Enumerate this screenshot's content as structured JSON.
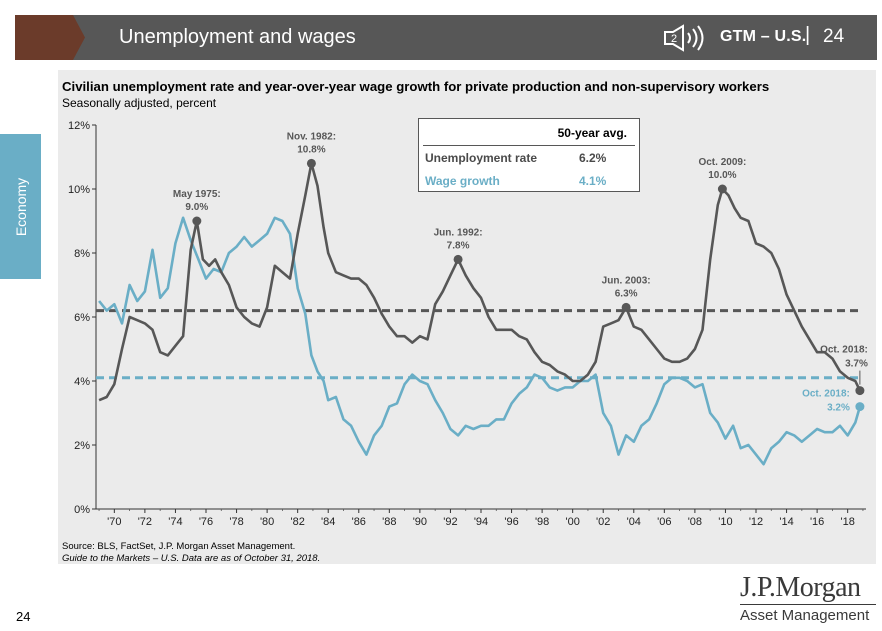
{
  "header": {
    "title": "Unemployment and wages",
    "badge": "GTM – U.S.",
    "separator": "|",
    "page_number": "24",
    "icon": "speaker-icon",
    "icon_number": "2"
  },
  "side_tab": {
    "label": "Economy"
  },
  "footer": {
    "source": "Source: BLS, FactSet, J.P. Morgan Asset Management.",
    "guide": "Guide to the Markets – U.S. Data are as of October 31, 2018.",
    "page_number": "24"
  },
  "logo": {
    "main": "J.P.Morgan",
    "sub": "Asset Management"
  },
  "legend": {
    "header": "50-year avg.",
    "rows": [
      {
        "label": "Unemployment rate",
        "value": "6.2%"
      },
      {
        "label": "Wage growth",
        "value": "4.1%"
      }
    ]
  },
  "colors": {
    "unemployment": "#575757",
    "wages": "#6aaec6",
    "header_accent": "#6b3b2a"
  },
  "chart_data": {
    "type": "line",
    "title": "Civilian unemployment rate and year-over-year wage growth for private production and non-supervisory workers",
    "subtitle": "Seasonally adjusted, percent",
    "ylim": [
      0,
      12
    ],
    "xlim": [
      1968.8,
      2019.2
    ],
    "y_ticks": [
      0,
      2,
      4,
      6,
      8,
      10,
      12
    ],
    "y_tick_labels": [
      "0%",
      "2%",
      "4%",
      "6%",
      "8%",
      "10%",
      "12%"
    ],
    "x_ticks": [
      1970,
      1972,
      1974,
      1976,
      1978,
      1980,
      1982,
      1984,
      1986,
      1988,
      1990,
      1992,
      1994,
      1996,
      1998,
      2000,
      2002,
      2004,
      2006,
      2008,
      2010,
      2012,
      2014,
      2016,
      2018
    ],
    "x_tick_labels": [
      "'70",
      "'72",
      "'74",
      "'76",
      "'78",
      "'80",
      "'82",
      "'84",
      "'86",
      "'88",
      "'90",
      "'92",
      "'94",
      "'96",
      "'98",
      "'00",
      "'02",
      "'04",
      "'06",
      "'08",
      "'10",
      "'12",
      "'14",
      "'16",
      "'18"
    ],
    "averages": [
      {
        "name": "Unemployment rate 50-year avg.",
        "value": 6.2
      },
      {
        "name": "Wage growth 50-year avg.",
        "value": 4.1
      }
    ],
    "series": [
      {
        "name": "Unemployment rate",
        "x": [
          1969.0,
          1969.5,
          1970.0,
          1970.5,
          1971.0,
          1971.5,
          1972.0,
          1972.5,
          1973.0,
          1973.5,
          1974.0,
          1974.5,
          1975.0,
          1975.4,
          1975.8,
          1976.2,
          1976.6,
          1977.0,
          1977.5,
          1978.0,
          1978.5,
          1979.0,
          1979.5,
          1980.0,
          1980.5,
          1981.0,
          1981.5,
          1982.0,
          1982.5,
          1982.9,
          1983.3,
          1983.7,
          1984.0,
          1984.5,
          1985.0,
          1985.5,
          1986.0,
          1986.5,
          1987.0,
          1987.5,
          1988.0,
          1988.5,
          1989.0,
          1989.5,
          1990.0,
          1990.5,
          1991.0,
          1991.5,
          1992.0,
          1992.5,
          1993.0,
          1993.5,
          1994.0,
          1994.5,
          1995.0,
          1995.5,
          1996.0,
          1996.5,
          1997.0,
          1997.5,
          1998.0,
          1998.5,
          1999.0,
          1999.5,
          2000.0,
          2000.5,
          2001.0,
          2001.5,
          2002.0,
          2002.5,
          2003.0,
          2003.5,
          2004.0,
          2004.5,
          2005.0,
          2005.5,
          2006.0,
          2006.5,
          2007.0,
          2007.5,
          2008.0,
          2008.5,
          2009.0,
          2009.5,
          2009.8,
          2010.2,
          2010.6,
          2011.0,
          2011.5,
          2012.0,
          2012.5,
          2013.0,
          2013.5,
          2014.0,
          2014.5,
          2015.0,
          2015.5,
          2016.0,
          2016.5,
          2017.0,
          2017.5,
          2018.0,
          2018.5,
          2018.8
        ],
        "values": [
          3.4,
          3.5,
          3.9,
          5.0,
          6.0,
          5.9,
          5.8,
          5.6,
          4.9,
          4.8,
          5.1,
          5.4,
          8.1,
          9.0,
          7.8,
          7.6,
          7.8,
          7.4,
          7.0,
          6.3,
          6.0,
          5.8,
          5.7,
          6.3,
          7.6,
          7.4,
          7.2,
          8.6,
          9.8,
          10.8,
          10.1,
          8.8,
          8.0,
          7.4,
          7.3,
          7.2,
          7.2,
          7.0,
          6.6,
          6.1,
          5.7,
          5.4,
          5.4,
          5.2,
          5.4,
          5.3,
          6.4,
          6.8,
          7.3,
          7.8,
          7.3,
          6.9,
          6.6,
          6.0,
          5.6,
          5.6,
          5.6,
          5.4,
          5.3,
          4.9,
          4.6,
          4.5,
          4.3,
          4.2,
          4.0,
          4.0,
          4.2,
          4.6,
          5.7,
          5.8,
          5.9,
          6.3,
          5.7,
          5.6,
          5.3,
          5.0,
          4.7,
          4.6,
          4.6,
          4.7,
          5.0,
          5.6,
          7.8,
          9.5,
          10.0,
          9.8,
          9.4,
          9.1,
          9.0,
          8.3,
          8.2,
          8.0,
          7.5,
          6.7,
          6.2,
          5.7,
          5.3,
          4.9,
          4.9,
          4.7,
          4.3,
          4.1,
          4.0,
          3.7
        ]
      },
      {
        "name": "Wage growth",
        "x": [
          1969.0,
          1969.5,
          1970.0,
          1970.5,
          1971.0,
          1971.5,
          1972.0,
          1972.5,
          1973.0,
          1973.5,
          1974.0,
          1974.5,
          1975.0,
          1975.5,
          1976.0,
          1976.5,
          1977.0,
          1977.5,
          1978.0,
          1978.5,
          1979.0,
          1979.5,
          1980.0,
          1980.5,
          1981.0,
          1981.5,
          1982.0,
          1982.5,
          1982.9,
          1983.3,
          1983.7,
          1984.0,
          1984.5,
          1985.0,
          1985.5,
          1986.0,
          1986.5,
          1987.0,
          1987.5,
          1988.0,
          1988.5,
          1989.0,
          1989.5,
          1990.0,
          1990.5,
          1991.0,
          1991.5,
          1992.0,
          1992.5,
          1993.0,
          1993.5,
          1994.0,
          1994.5,
          1995.0,
          1995.5,
          1996.0,
          1996.5,
          1997.0,
          1997.5,
          1998.0,
          1998.5,
          1999.0,
          1999.5,
          2000.0,
          2000.5,
          2001.0,
          2001.5,
          2002.0,
          2002.5,
          2003.0,
          2003.5,
          2004.0,
          2004.5,
          2005.0,
          2005.5,
          2006.0,
          2006.5,
          2007.0,
          2007.5,
          2008.0,
          2008.5,
          2009.0,
          2009.5,
          2010.0,
          2010.5,
          2011.0,
          2011.5,
          2012.0,
          2012.5,
          2013.0,
          2013.5,
          2014.0,
          2014.5,
          2015.0,
          2015.5,
          2016.0,
          2016.5,
          2017.0,
          2017.5,
          2018.0,
          2018.5,
          2018.8
        ],
        "values": [
          6.5,
          6.2,
          6.4,
          5.8,
          7.0,
          6.5,
          6.8,
          8.1,
          6.6,
          6.9,
          8.3,
          9.1,
          8.4,
          7.8,
          7.2,
          7.5,
          7.4,
          8.0,
          8.2,
          8.5,
          8.2,
          8.4,
          8.6,
          9.1,
          9.0,
          8.6,
          6.9,
          6.1,
          4.8,
          4.3,
          4.0,
          3.4,
          3.5,
          2.8,
          2.6,
          2.1,
          1.7,
          2.3,
          2.6,
          3.2,
          3.3,
          3.9,
          4.2,
          4.0,
          3.9,
          3.4,
          3.0,
          2.5,
          2.3,
          2.6,
          2.5,
          2.6,
          2.6,
          2.8,
          2.8,
          3.3,
          3.6,
          3.8,
          4.2,
          4.1,
          3.8,
          3.7,
          3.8,
          3.8,
          4.0,
          4.0,
          4.2,
          3.0,
          2.6,
          1.7,
          2.3,
          2.1,
          2.6,
          2.8,
          3.3,
          3.9,
          4.1,
          4.1,
          4.0,
          3.8,
          3.9,
          3.0,
          2.7,
          2.2,
          2.6,
          1.9,
          2.0,
          1.7,
          1.4,
          1.9,
          2.1,
          2.4,
          2.3,
          2.1,
          2.3,
          2.5,
          2.4,
          2.4,
          2.6,
          2.3,
          2.7,
          3.2
        ]
      }
    ],
    "annotations": [
      {
        "label": "May 1975:",
        "value_label": "9.0%",
        "x": 1975.4,
        "y": 9.0,
        "series": "Unemployment rate"
      },
      {
        "label": "Nov. 1982:",
        "value_label": "10.8%",
        "x": 1982.9,
        "y": 10.8,
        "series": "Unemployment rate"
      },
      {
        "label": "Jun. 1992:",
        "value_label": "7.8%",
        "x": 1992.5,
        "y": 7.8,
        "series": "Unemployment rate"
      },
      {
        "label": "Jun. 2003:",
        "value_label": "6.3%",
        "x": 2003.5,
        "y": 6.3,
        "series": "Unemployment rate"
      },
      {
        "label": "Oct. 2009:",
        "value_label": "10.0%",
        "x": 2009.8,
        "y": 10.0,
        "series": "Unemployment rate"
      },
      {
        "label": "Oct. 2018:",
        "value_label": "3.7%",
        "x": 2018.8,
        "y": 3.7,
        "series": "Unemployment rate"
      },
      {
        "label": "Oct. 2018:",
        "value_label": "3.2%",
        "x": 2018.8,
        "y": 3.2,
        "series": "Wage growth"
      }
    ]
  }
}
